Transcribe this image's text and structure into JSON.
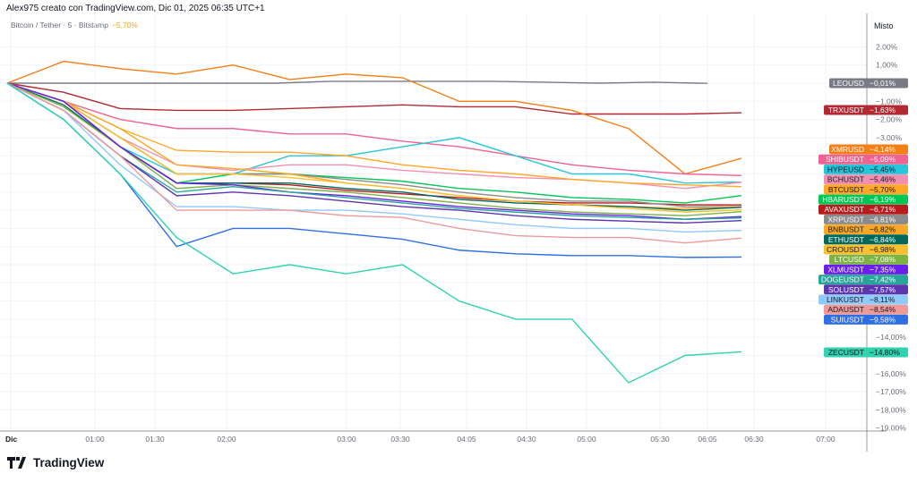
{
  "header": {
    "title": "Alex975 creato con TradingView.com, Dic 01, 2025 06:35 UTC+1"
  },
  "legend": {
    "symbol": "Bitcoin / Tether · 5 · Bitstamp",
    "change": "−5,70%"
  },
  "logo": {
    "text": "TradingView"
  },
  "chart_data": {
    "type": "line",
    "scale_label": "Misto",
    "grid": true,
    "y_unit": "%",
    "y_ticks": [
      {
        "v": 2,
        "label": "2,00%"
      },
      {
        "v": 1,
        "label": "1,00%"
      },
      {
        "v": -1,
        "label": "−1,00%"
      },
      {
        "v": -2,
        "label": "−2,00%"
      },
      {
        "v": -3,
        "label": "−3,00%"
      },
      {
        "v": -14,
        "label": "−14,00%"
      },
      {
        "v": -16,
        "label": "−16,00%"
      },
      {
        "v": -17,
        "label": "−17,00%"
      },
      {
        "v": -18,
        "label": "−18,00%"
      },
      {
        "v": -19,
        "label": "−19,00%"
      }
    ],
    "x_ticks": [
      "Dic",
      "01:00",
      "01:30",
      "02:00",
      "03:00",
      "03:30",
      "04:05",
      "04:30",
      "05:00",
      "05:30",
      "06:05",
      "06:30",
      "07:00"
    ],
    "series": [
      {
        "name": "LEOUSD",
        "last": "−0,01%",
        "color": "#787b86",
        "text": "#ffffff",
        "values": [
          0,
          0,
          0,
          0,
          0,
          0,
          0.1,
          0.1,
          0.1,
          0.1,
          0.05,
          0,
          0.05,
          -0.01
        ]
      },
      {
        "name": "TRXUSDT",
        "last": "−1,63%",
        "color": "#b22833",
        "text": "#ffffff",
        "values": [
          0,
          -0.5,
          -1.4,
          -1.5,
          -1.5,
          -1.4,
          -1.3,
          -1.2,
          -1.3,
          -1.3,
          -1.7,
          -1.7,
          -1.7,
          -1.63
        ]
      },
      {
        "name": "XMRUSD",
        "last": "−4,14%",
        "color": "#f57f17",
        "text": "#ffffff",
        "values": [
          0,
          1.2,
          0.8,
          0.5,
          1,
          0.2,
          0.5,
          0.3,
          -1,
          -1,
          -1.5,
          -2.5,
          -5,
          -4.14
        ]
      },
      {
        "name": "SHIBUSDT",
        "last": "−5,09%",
        "color": "#f06292",
        "text": "#ffffff",
        "values": [
          0,
          -1,
          -2,
          -2.5,
          -2.5,
          -2.8,
          -2.8,
          -3.2,
          -3.5,
          -4,
          -4.5,
          -4.8,
          -5,
          -5.09
        ]
      },
      {
        "name": "HYPEUSD",
        "last": "−5,45%",
        "color": "#26c6da",
        "text": "#131722",
        "values": [
          0,
          -1,
          -3.5,
          -5,
          -5,
          -4,
          -4,
          -3.5,
          -3,
          -4,
          -5,
          -5,
          -5.5,
          -5.45
        ]
      },
      {
        "name": "BCHUSDT",
        "last": "−5,46%",
        "color": "#f48fb1",
        "text": "#131722",
        "values": [
          0,
          -1,
          -3,
          -4.5,
          -4.8,
          -4.5,
          -4.5,
          -4.8,
          -5,
          -5.2,
          -5.3,
          -5.5,
          -5.8,
          -5.46
        ]
      },
      {
        "name": "BTCUSDT",
        "last": "−5,70%",
        "color": "#ffa726",
        "text": "#131722",
        "values": [
          0,
          -1,
          -2.5,
          -3.7,
          -3.8,
          -3.8,
          -4,
          -4.5,
          -4.8,
          -5,
          -5.3,
          -5.5,
          -5.6,
          -5.7
        ]
      },
      {
        "name": "HBARUSDT",
        "last": "−6,19%",
        "color": "#00c853",
        "text": "#ffffff",
        "values": [
          0,
          -1,
          -3.5,
          -5.5,
          -5,
          -5,
          -5.2,
          -5.4,
          -5.8,
          -6,
          -6.3,
          -6.4,
          -6.6,
          -6.19
        ]
      },
      {
        "name": "AVAXUSDT",
        "last": "−6,71%",
        "color": "#b71c1c",
        "text": "#ffffff",
        "values": [
          0,
          -1,
          -3.5,
          -5.5,
          -5.5,
          -5.6,
          -5.9,
          -6.1,
          -6.3,
          -6.5,
          -6.6,
          -6.6,
          -6.7,
          -6.71
        ]
      },
      {
        "name": "XRPUSDT",
        "last": "−6,81%",
        "color": "#8a8a8a",
        "text": "#ffffff",
        "values": [
          0,
          -1,
          -3,
          -5,
          -5,
          -5,
          -5.3,
          -5.6,
          -6,
          -6.3,
          -6.5,
          -6.5,
          -6.8,
          -6.81
        ]
      },
      {
        "name": "BNBUSDT",
        "last": "−6,82%",
        "color": "#f9a825",
        "text": "#131722",
        "values": [
          0,
          -1,
          -2.5,
          -4.5,
          -4.7,
          -5,
          -5.5,
          -5.8,
          -6.2,
          -6.5,
          -6.7,
          -6.8,
          -6.9,
          -6.82
        ]
      },
      {
        "name": "ETHUSDT",
        "last": "−6,84%",
        "color": "#00695c",
        "text": "#ffffff",
        "values": [
          0,
          -1.2,
          -3.5,
          -5.5,
          -5.5,
          -5.5,
          -5.8,
          -6,
          -6.4,
          -6.6,
          -6.7,
          -6.8,
          -7,
          -6.84
        ]
      },
      {
        "name": "CROUSDT",
        "last": "−6,98%",
        "color": "#fbc02d",
        "text": "#131722",
        "values": [
          0,
          -1,
          -3,
          -5,
          -5,
          -5.2,
          -5.5,
          -5.8,
          -6.2,
          -6.5,
          -6.7,
          -6.9,
          -7.1,
          -6.98
        ]
      },
      {
        "name": "LTCUSD",
        "last": "−7,08%",
        "color": "#7cb342",
        "text": "#ffffff",
        "values": [
          0,
          -1.3,
          -3.5,
          -5.8,
          -5.6,
          -5.8,
          -6,
          -6.3,
          -6.6,
          -6.9,
          -7.1,
          -7.2,
          -7.3,
          -7.08
        ]
      },
      {
        "name": "XLMUSDT",
        "last": "−7,35%",
        "color": "#6a1fe8",
        "text": "#ffffff",
        "values": [
          0,
          -1,
          -3.5,
          -5.5,
          -5.6,
          -6,
          -6.2,
          -6.5,
          -6.8,
          -7,
          -7.2,
          -7.3,
          -7.5,
          -7.35
        ]
      },
      {
        "name": "DOGEUSDT",
        "last": "−7,42%",
        "color": "#26a69a",
        "text": "#ffffff",
        "values": [
          0,
          -1.5,
          -4,
          -6,
          -5.7,
          -6,
          -6.3,
          -6.6,
          -6.9,
          -7.1,
          -7.3,
          -7.4,
          -7.5,
          -7.42
        ]
      },
      {
        "name": "SOLUSDT",
        "last": "−7,57%",
        "color": "#5e35b1",
        "text": "#ffffff",
        "values": [
          0,
          -1.5,
          -4,
          -6.2,
          -6,
          -6.2,
          -6.5,
          -6.8,
          -7,
          -7.3,
          -7.5,
          -7.6,
          -7.7,
          -7.57
        ]
      },
      {
        "name": "LINKUSDT",
        "last": "−8,11%",
        "color": "#90caf9",
        "text": "#131722",
        "values": [
          0,
          -1.5,
          -4.5,
          -6.8,
          -6.8,
          -7,
          -7,
          -7.2,
          -7.5,
          -7.8,
          -8,
          -8,
          -8.2,
          -8.11
        ]
      },
      {
        "name": "ADAUSDT",
        "last": "−8,54%",
        "color": "#ef9a9a",
        "text": "#131722",
        "values": [
          0,
          -1.5,
          -4,
          -7,
          -7,
          -7,
          -7.3,
          -7.4,
          -8,
          -8.4,
          -8.5,
          -8.5,
          -8.8,
          -8.54
        ]
      },
      {
        "name": "SUIUSDT",
        "last": "−9,58%",
        "color": "#2f6fe4",
        "text": "#ffffff",
        "values": [
          0,
          -2,
          -5,
          -9,
          -8,
          -8,
          -8.3,
          -8.6,
          -9.2,
          -9.4,
          -9.5,
          -9.5,
          -9.6,
          -9.58
        ]
      },
      {
        "name": "ZECUSDT",
        "last": "−14,80%",
        "color": "#2fd3b0",
        "text": "#131722",
        "values": [
          0,
          -2,
          -5,
          -8.5,
          -10.5,
          -10,
          -10.5,
          -10,
          -12,
          -13,
          -13,
          -16.5,
          -15,
          -14.8
        ]
      }
    ]
  }
}
